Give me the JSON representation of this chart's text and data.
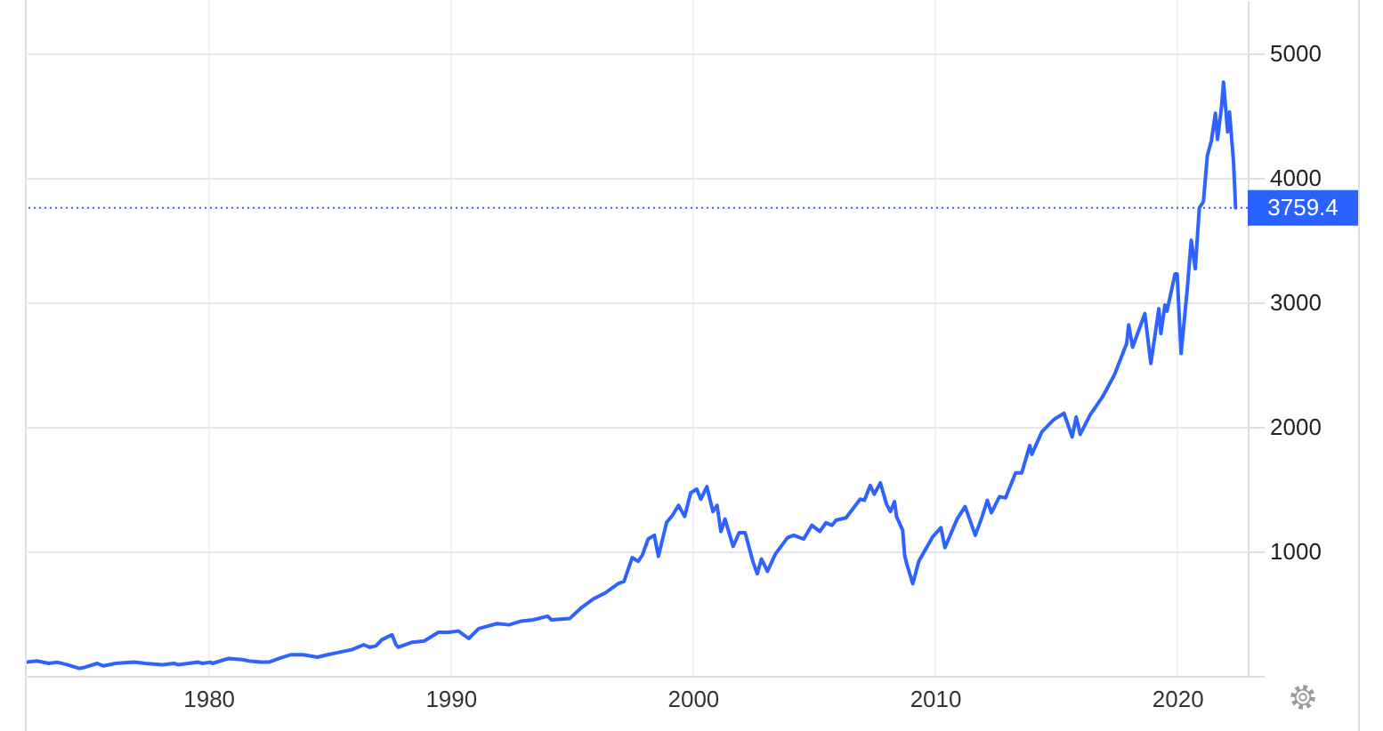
{
  "chart_data": {
    "type": "line",
    "x": [
      "1972-07",
      "1972-12",
      "1973-06",
      "1973-10",
      "1974-03",
      "1974-09",
      "1974-12",
      "1975-06",
      "1975-09",
      "1976-03",
      "1976-12",
      "1977-06",
      "1978-02",
      "1978-08",
      "1978-10",
      "1979-08",
      "1979-10",
      "1980-02",
      "1980-03",
      "1980-11",
      "1981-06",
      "1981-09",
      "1982-03",
      "1982-07",
      "1982-12",
      "1983-06",
      "1983-12",
      "1984-07",
      "1984-12",
      "1985-06",
      "1985-12",
      "1986-06",
      "1986-09",
      "1986-12",
      "1987-03",
      "1987-08",
      "1987-10",
      "1987-11",
      "1988-06",
      "1988-12",
      "1989-07",
      "1989-12",
      "1990-05",
      "1990-10",
      "1991-03",
      "1991-12",
      "1992-06",
      "1992-12",
      "1993-06",
      "1994-01",
      "1994-03",
      "1994-12",
      "1995-06",
      "1995-12",
      "1996-06",
      "1996-12",
      "1997-03",
      "1997-07",
      "1997-10",
      "1997-12",
      "1998-03",
      "1998-06",
      "1998-08",
      "1998-12",
      "1999-03",
      "1999-06",
      "1999-09",
      "1999-12",
      "2000-03",
      "2000-05",
      "2000-08",
      "2000-11",
      "2001-01",
      "2001-03",
      "2001-05",
      "2001-09",
      "2001-12",
      "2002-03",
      "2002-07",
      "2002-09",
      "2002-11",
      "2003-02",
      "2003-06",
      "2003-12",
      "2004-03",
      "2004-08",
      "2004-12",
      "2005-04",
      "2005-07",
      "2005-10",
      "2005-12",
      "2006-05",
      "2006-12",
      "2007-02",
      "2007-05",
      "2007-07",
      "2007-10",
      "2008-01",
      "2008-03",
      "2008-05",
      "2008-06",
      "2008-09",
      "2008-10",
      "2008-11",
      "2009-02",
      "2009-05",
      "2009-12",
      "2010-04",
      "2010-06",
      "2010-12",
      "2011-04",
      "2011-09",
      "2011-12",
      "2012-03",
      "2012-05",
      "2012-09",
      "2012-12",
      "2013-05",
      "2013-08",
      "2013-12",
      "2014-01",
      "2014-06",
      "2014-12",
      "2015-05",
      "2015-09",
      "2015-11",
      "2016-01",
      "2016-06",
      "2016-12",
      "2017-06",
      "2017-12",
      "2018-01",
      "2018-03",
      "2018-09",
      "2018-12",
      "2019-04",
      "2019-05",
      "2019-07",
      "2019-08",
      "2019-12",
      "2020-01",
      "2020-03",
      "2020-06",
      "2020-08",
      "2020-10",
      "2020-12",
      "2021-02",
      "2021-04",
      "2021-06",
      "2021-08",
      "2021-09",
      "2021-11",
      "2021-12",
      "2022-02",
      "2022-03",
      "2022-05",
      "2022-06"
    ],
    "series": [
      {
        "color": "#2e63ff",
        "values": [
          110,
          120,
          100,
          110,
          90,
          60,
          70,
          100,
          80,
          100,
          110,
          100,
          90,
          100,
          90,
          110,
          100,
          110,
          100,
          140,
          130,
          120,
          110,
          110,
          140,
          170,
          170,
          150,
          170,
          190,
          210,
          250,
          230,
          240,
          290,
          330,
          250,
          230,
          270,
          280,
          350,
          350,
          360,
          300,
          380,
          420,
          410,
          440,
          450,
          480,
          450,
          460,
          550,
          620,
          670,
          740,
          760,
          950,
          920,
          970,
          1100,
          1130,
          960,
          1230,
          1290,
          1370,
          1280,
          1470,
          1500,
          1420,
          1520,
          1320,
          1370,
          1160,
          1260,
          1040,
          1150,
          1150,
          910,
          820,
          940,
          840,
          980,
          1110,
          1130,
          1100,
          1210,
          1160,
          1230,
          1210,
          1250,
          1270,
          1420,
          1410,
          1530,
          1460,
          1550,
          1380,
          1320,
          1400,
          1280,
          1170,
          970,
          900,
          740,
          920,
          1120,
          1190,
          1030,
          1260,
          1360,
          1130,
          1260,
          1410,
          1310,
          1440,
          1430,
          1630,
          1630,
          1850,
          1780,
          1960,
          2060,
          2110,
          1920,
          2080,
          1940,
          2100,
          2240,
          2420,
          2670,
          2820,
          2640,
          2910,
          2510,
          2950,
          2750,
          2980,
          2930,
          3230,
          3230,
          2590,
          3100,
          3500,
          3270,
          3760,
          3810,
          4180,
          4300,
          4520,
          4310,
          4570,
          4770,
          4370,
          4530,
          4130,
          3760
        ]
      }
    ],
    "xlim": [
      "1972-07",
      "2022-12"
    ],
    "xticks": [
      "1980",
      "1990",
      "2000",
      "2010",
      "2020"
    ],
    "ylim": [
      0,
      5430
    ],
    "yticks": [
      {
        "value": 0,
        "label": null
      },
      1000,
      2000,
      3000,
      4000,
      5000
    ],
    "grid": true,
    "ref_lines": [
      {
        "axis": "y",
        "value": 3759.4,
        "label": "3759.4",
        "color": "#2962ff",
        "line_style": "dotted"
      }
    ]
  }
}
